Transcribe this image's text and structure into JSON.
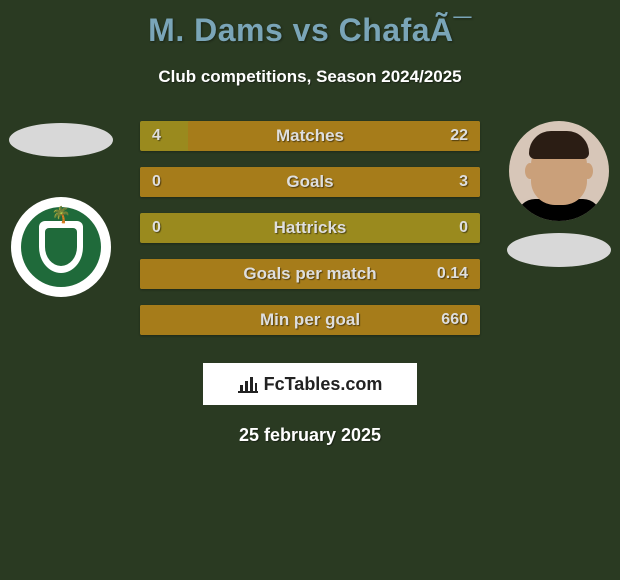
{
  "background_color": "#2a3a22",
  "title": {
    "text": "M. Dams vs ChafaÃ¯",
    "color": "#7aa5b8",
    "fontsize": 32
  },
  "subtitle": {
    "text": "Club competitions, Season 2024/2025",
    "color": "#ffffff",
    "fontsize": 17
  },
  "bars": {
    "bar_bg_color": "#9a8a1e",
    "bar_fill_color": "#a67c1a",
    "label_color": "#dedede",
    "value_color": "#dedede",
    "label_fontsize": 17,
    "value_fontsize": 16,
    "rows": [
      {
        "label": "Matches",
        "left": "4",
        "right": "22",
        "right_fill_pct": 86
      },
      {
        "label": "Goals",
        "left": "0",
        "right": "3",
        "right_fill_pct": 100
      },
      {
        "label": "Hattricks",
        "left": "0",
        "right": "0",
        "right_fill_pct": 0
      },
      {
        "label": "Goals per match",
        "left": "",
        "right": "0.14",
        "right_fill_pct": 100
      },
      {
        "label": "Min per goal",
        "left": "",
        "right": "660",
        "right_fill_pct": 100
      }
    ]
  },
  "left_side": {
    "ellipse_color": "#d8d8d8",
    "crest_bg": "#1f6a3a",
    "crest_shield": "#ffffff"
  },
  "right_side": {
    "ellipse_color": "#d8d8d8",
    "face_bg": "#d7c6b8",
    "skin": "#caa07a",
    "hair": "#2b1d14",
    "shirt": "#000000"
  },
  "brand": {
    "text": "FcTables.com",
    "box_bg": "#ffffff",
    "text_color": "#222222",
    "fontsize": 18
  },
  "date": {
    "text": "25 february 2025",
    "color": "#ffffff",
    "fontsize": 18
  }
}
